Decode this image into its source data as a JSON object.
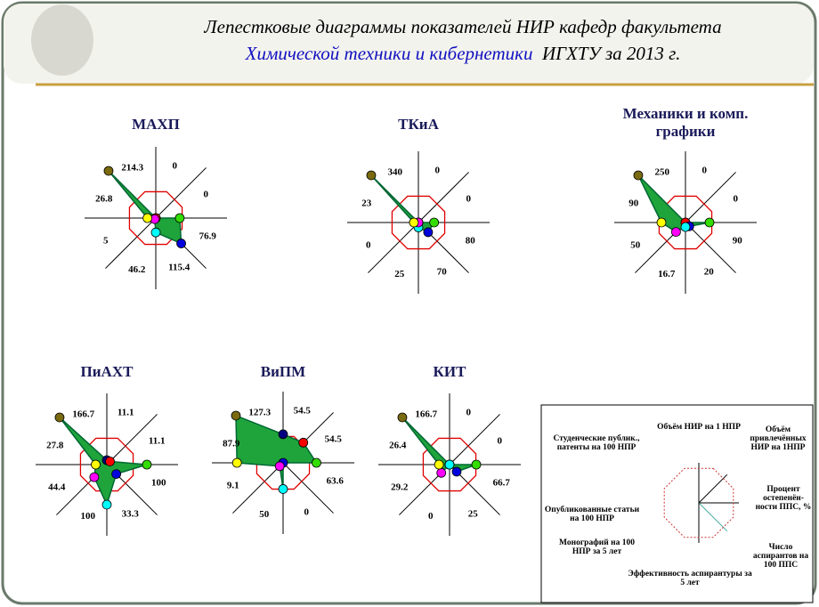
{
  "header": {
    "line1": "Лепестковые диаграммы показателей НИР  кафедр факультета",
    "line2_blue": "Химической техники и кибернетики",
    "line2_black": "ИГХТУ за 2013 г."
  },
  "chart_data": [
    {
      "type": "radar",
      "title": "МАХП",
      "values": [
        0,
        0,
        76.9,
        115.4,
        46.2,
        5,
        26.8,
        214.3
      ]
    },
    {
      "type": "radar",
      "title": "ТКиА",
      "values": [
        0,
        0,
        80,
        70,
        25,
        0,
        23,
        340
      ]
    },
    {
      "type": "radar",
      "title": "Механики и комп. графики",
      "values": [
        0,
        0,
        90,
        20,
        16.7,
        50,
        90,
        250
      ]
    },
    {
      "type": "radar",
      "title": "ПиАХТ",
      "values": [
        11.1,
        11.1,
        100,
        33.3,
        100,
        44.4,
        27.8,
        166.7
      ]
    },
    {
      "type": "radar",
      "title": "ВиПМ",
      "values": [
        54.5,
        54.5,
        63.6,
        0,
        50,
        9.1,
        87.9,
        127.3
      ]
    },
    {
      "type": "radar",
      "title": "КИТ",
      "values": [
        0,
        0,
        66.7,
        25,
        0,
        29.2,
        26.4,
        166.7
      ]
    }
  ],
  "legend_axes": [
    "Объём НИР на 1 НПР",
    "Объём привлечённых НИР на 1НПР",
    "Процент остепенён-ности ППС, %",
    "Число аспирантов на 100 ППС",
    "Эффективность аспирантуры за 5 лет",
    "Монографий на 100 НПР  за 5 лет",
    "Опубликованные статьи на 100 НПР",
    "Студенческие публик., патенты на 100 НПР"
  ]
}
